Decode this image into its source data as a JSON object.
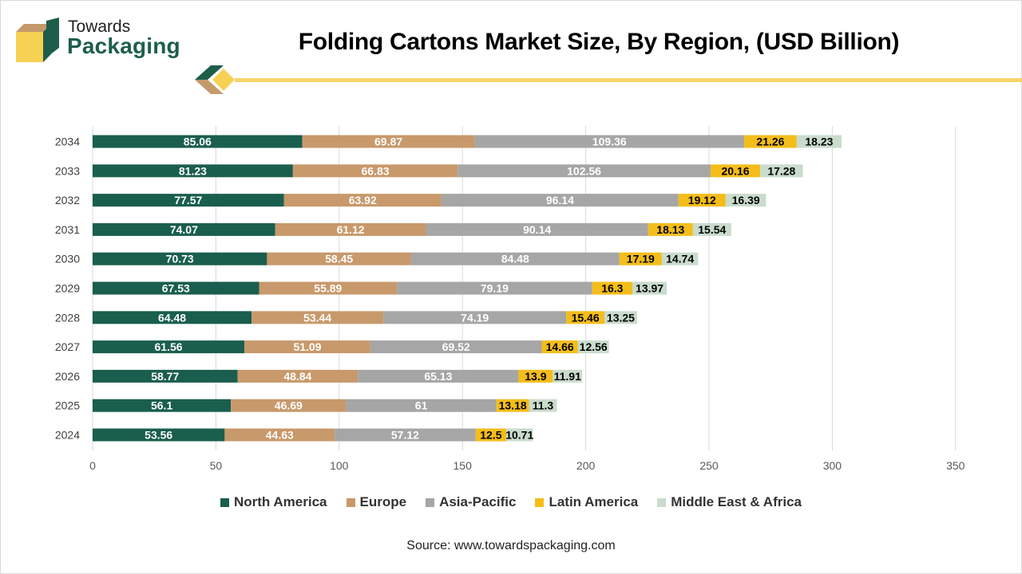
{
  "brand": {
    "line1": "Towards",
    "line2": "Packaging"
  },
  "title": "Folding Cartons Market Size, By Region, (USD Billion)",
  "source": "Source: www.towardspackaging.com",
  "colors": {
    "brand_green": "#1d5e4b",
    "brand_tan": "#c49a6c",
    "brand_yellow": "#f7d154",
    "accent_line": "#f5d56a"
  },
  "chart_data": {
    "type": "bar",
    "orientation": "horizontal",
    "stacked": true,
    "categories": [
      "2024",
      "2025",
      "2026",
      "2027",
      "2028",
      "2029",
      "2030",
      "2031",
      "2032",
      "2033",
      "2034"
    ],
    "series": [
      {
        "name": "North America",
        "color": "#1a5e4e",
        "values": [
          53.56,
          56.1,
          58.77,
          61.56,
          64.48,
          67.53,
          70.73,
          74.07,
          77.57,
          81.23,
          85.06
        ]
      },
      {
        "name": "Europe",
        "color": "#c8996b",
        "values": [
          44.63,
          46.69,
          48.84,
          51.09,
          53.44,
          55.89,
          58.45,
          61.12,
          63.92,
          66.83,
          69.87
        ]
      },
      {
        "name": "Asia-Pacific",
        "color": "#a6a6a6",
        "values": [
          57.12,
          61,
          65.13,
          69.52,
          74.19,
          79.19,
          84.48,
          90.14,
          96.14,
          102.56,
          109.36
        ]
      },
      {
        "name": "Latin America",
        "color": "#f4bd19",
        "values": [
          12.5,
          13.18,
          13.9,
          14.66,
          15.46,
          16.3,
          17.19,
          18.13,
          19.12,
          20.16,
          21.26
        ]
      },
      {
        "name": "Middle East & Africa",
        "color": "#c9dccd",
        "values": [
          10.71,
          11.3,
          11.91,
          12.56,
          13.25,
          13.97,
          14.74,
          15.54,
          16.39,
          17.28,
          18.23
        ]
      }
    ],
    "x_ticks": [
      0,
      50,
      100,
      150,
      200,
      250,
      300,
      350
    ],
    "xlim": [
      0,
      350
    ],
    "grid": "vertical",
    "legend_position": "bottom",
    "data_labels": true
  }
}
